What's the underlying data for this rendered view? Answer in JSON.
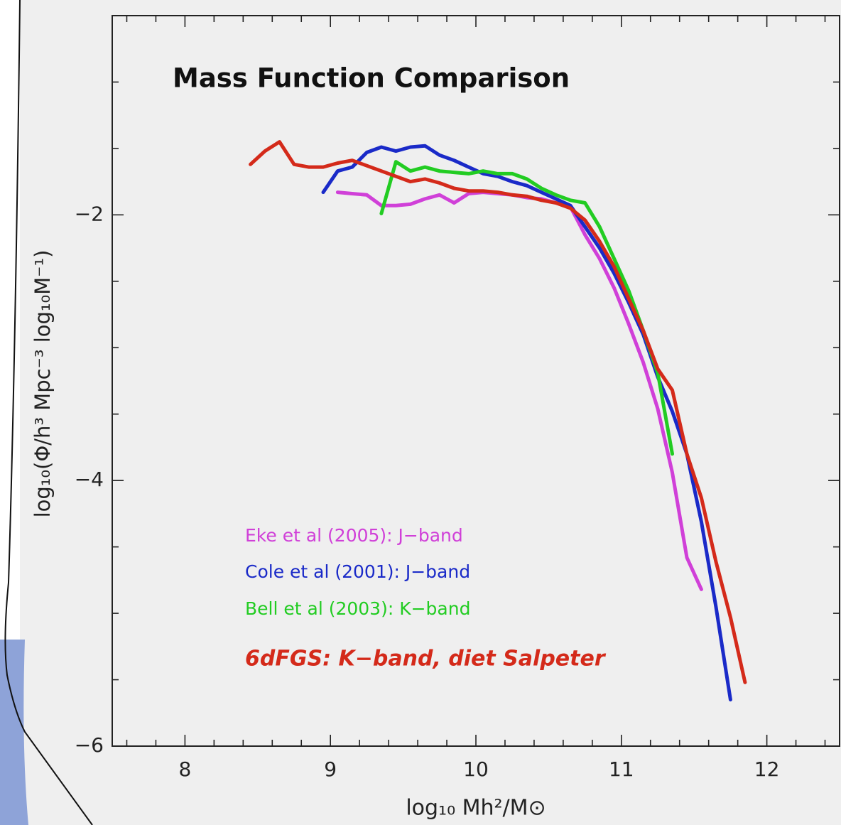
{
  "chart_data": {
    "type": "line",
    "title": "Mass Function Comparison",
    "x_label": "log₁₀ Mh²/M⊙",
    "y_label": "log₁₀(Φ/h³   Mpc⁻³   log₁₀M⁻¹)",
    "xlim": [
      7.5,
      12.5
    ],
    "ylim": [
      -6,
      -0.5
    ],
    "xticks": [
      8,
      9,
      10,
      11,
      12
    ],
    "xminorticks": [
      7.6,
      7.8,
      8.2,
      8.4,
      8.6,
      8.8,
      9.2,
      9.4,
      9.6,
      9.8,
      10.2,
      10.4,
      10.6,
      10.8,
      11.2,
      11.4,
      11.6,
      11.8,
      12.2,
      12.4
    ],
    "yticks": [
      {
        "value": -6,
        "label": "−6"
      },
      {
        "value": -4,
        "label": "−4"
      },
      {
        "value": -2,
        "label": "−2"
      }
    ],
    "yminorticks": [
      -5.5,
      -5,
      -4.5,
      -3.5,
      -3,
      -2.5,
      -1.5,
      -1
    ],
    "series": [
      {
        "name": "Eke et al (2005):  J−band",
        "color": "#d040d8",
        "x": [
          9.05,
          9.15,
          9.25,
          9.35,
          9.45,
          9.55,
          9.65,
          9.75,
          9.85,
          9.95,
          10.05,
          10.15,
          10.25,
          10.35,
          10.45,
          10.55,
          10.65,
          10.75,
          10.85,
          10.95,
          11.05,
          11.15,
          11.25,
          11.35,
          11.45,
          11.55
        ],
        "values": [
          -1.83,
          -1.84,
          -1.85,
          -1.93,
          -1.93,
          -1.92,
          -1.88,
          -1.85,
          -1.91,
          -1.84,
          -1.83,
          -1.84,
          -1.85,
          -1.87,
          -1.88,
          -1.91,
          -1.94,
          -2.15,
          -2.33,
          -2.55,
          -2.82,
          -3.11,
          -3.46,
          -3.94,
          -4.58,
          -4.82
        ]
      },
      {
        "name": "Cole et al (2001):   J−band",
        "color": "#1a2ac8",
        "x": [
          8.95,
          9.05,
          9.15,
          9.25,
          9.35,
          9.45,
          9.55,
          9.65,
          9.75,
          9.85,
          9.95,
          10.05,
          10.15,
          10.25,
          10.35,
          10.45,
          10.55,
          10.65,
          10.75,
          10.85,
          10.95,
          11.05,
          11.15,
          11.25,
          11.35,
          11.45,
          11.55,
          11.65,
          11.75
        ],
        "values": [
          -1.83,
          -1.67,
          -1.64,
          -1.53,
          -1.49,
          -1.52,
          -1.49,
          -1.48,
          -1.55,
          -1.59,
          -1.64,
          -1.69,
          -1.71,
          -1.75,
          -1.78,
          -1.83,
          -1.88,
          -1.93,
          -2.09,
          -2.25,
          -2.44,
          -2.66,
          -2.9,
          -3.22,
          -3.48,
          -3.8,
          -4.31,
          -4.95,
          -5.65
        ]
      },
      {
        "name": "Bell et al (2003):  K−band",
        "color": "#22cc22",
        "x": [
          9.35,
          9.45,
          9.55,
          9.65,
          9.75,
          9.85,
          9.95,
          10.05,
          10.15,
          10.25,
          10.35,
          10.45,
          10.55,
          10.65,
          10.75,
          10.85,
          10.95,
          11.05,
          11.15,
          11.25,
          11.35
        ],
        "values": [
          -1.99,
          -1.6,
          -1.67,
          -1.64,
          -1.67,
          -1.68,
          -1.69,
          -1.67,
          -1.69,
          -1.69,
          -1.73,
          -1.8,
          -1.85,
          -1.89,
          -1.91,
          -2.09,
          -2.33,
          -2.57,
          -2.87,
          -3.19,
          -3.8
        ]
      },
      {
        "name": "6dFGS: K−band, diet Salpeter",
        "color": "#d42a1a",
        "x": [
          8.45,
          8.55,
          8.65,
          8.75,
          8.85,
          8.95,
          9.05,
          9.15,
          9.25,
          9.35,
          9.45,
          9.55,
          9.65,
          9.75,
          9.85,
          9.95,
          10.05,
          10.15,
          10.25,
          10.35,
          10.45,
          10.55,
          10.65,
          10.75,
          10.85,
          10.95,
          11.05,
          11.15,
          11.25,
          11.35,
          11.45,
          11.55,
          11.65,
          11.75,
          11.85
        ],
        "values": [
          -1.62,
          -1.52,
          -1.45,
          -1.62,
          -1.64,
          -1.64,
          -1.61,
          -1.59,
          -1.63,
          -1.67,
          -1.71,
          -1.75,
          -1.73,
          -1.76,
          -1.8,
          -1.82,
          -1.82,
          -1.83,
          -1.85,
          -1.86,
          -1.89,
          -1.91,
          -1.95,
          -2.04,
          -2.2,
          -2.39,
          -2.63,
          -2.87,
          -3.16,
          -3.32,
          -3.8,
          -4.13,
          -4.61,
          -5.03,
          -5.52
        ]
      }
    ]
  }
}
